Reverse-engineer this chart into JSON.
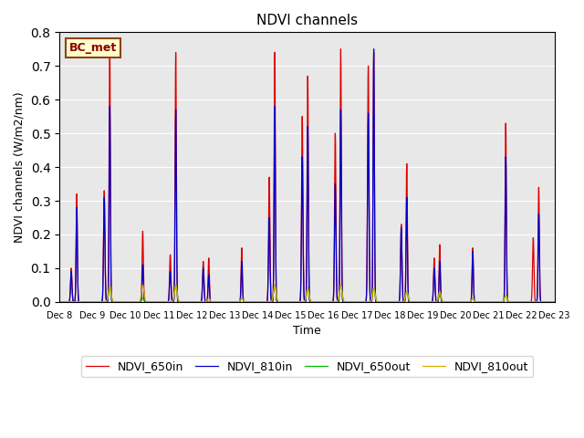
{
  "title": "NDVI channels",
  "xlabel": "Time",
  "ylabel": "NDVI channels (W/m2/nm)",
  "annotation": "BC_met",
  "ylim": [
    0.0,
    0.8
  ],
  "background_color": "#e8e8e8",
  "legend_entries": [
    "NDVI_650in",
    "NDVI_810in",
    "NDVI_650out",
    "NDVI_810out"
  ],
  "line_colors": [
    "#dd0000",
    "#0000cc",
    "#00bb00",
    "#ddaa00"
  ],
  "peaks": [
    {
      "day": 8,
      "red": 0.32,
      "blue": 0.28,
      "green": 0.0,
      "orange": 0.0,
      "pre_red": 0.1,
      "pre_blue": 0.09
    },
    {
      "day": 9,
      "red": 0.76,
      "blue": 0.58,
      "green": 0.04,
      "orange": 0.05,
      "pre_red": 0.33,
      "pre_blue": 0.31
    },
    {
      "day": 10,
      "red": 0.21,
      "blue": 0.11,
      "green": 0.01,
      "orange": 0.05,
      "pre_red": 0.0,
      "pre_blue": 0.0
    },
    {
      "day": 11,
      "red": 0.74,
      "blue": 0.57,
      "green": 0.05,
      "orange": 0.05,
      "pre_red": 0.14,
      "pre_blue": 0.09
    },
    {
      "day": 12,
      "red": 0.13,
      "blue": 0.08,
      "green": 0.0,
      "orange": 0.01,
      "pre_red": 0.12,
      "pre_blue": 0.1
    },
    {
      "day": 13,
      "red": 0.16,
      "blue": 0.12,
      "green": 0.01,
      "orange": 0.01,
      "pre_red": 0.0,
      "pre_blue": 0.0
    },
    {
      "day": 14,
      "red": 0.74,
      "blue": 0.58,
      "green": 0.05,
      "orange": 0.05,
      "pre_red": 0.37,
      "pre_blue": 0.25
    },
    {
      "day": 15,
      "red": 0.67,
      "blue": 0.52,
      "green": 0.04,
      "orange": 0.04,
      "pre_red": 0.55,
      "pre_blue": 0.43
    },
    {
      "day": 16,
      "red": 0.75,
      "blue": 0.57,
      "green": 0.05,
      "orange": 0.05,
      "pre_red": 0.5,
      "pre_blue": 0.35
    },
    {
      "day": 17,
      "red": 0.74,
      "blue": 0.75,
      "green": 0.04,
      "orange": 0.04,
      "pre_red": 0.7,
      "pre_blue": 0.56
    },
    {
      "day": 18,
      "red": 0.41,
      "blue": 0.31,
      "green": 0.03,
      "orange": 0.03,
      "pre_red": 0.23,
      "pre_blue": 0.22
    },
    {
      "day": 19,
      "red": 0.17,
      "blue": 0.12,
      "green": 0.02,
      "orange": 0.03,
      "pre_red": 0.13,
      "pre_blue": 0.1
    },
    {
      "day": 20,
      "red": 0.16,
      "blue": 0.15,
      "green": 0.01,
      "orange": 0.01,
      "pre_red": 0.0,
      "pre_blue": 0.0
    },
    {
      "day": 21,
      "red": 0.53,
      "blue": 0.43,
      "green": 0.02,
      "orange": 0.02,
      "pre_red": 0.0,
      "pre_blue": 0.0
    },
    {
      "day": 22,
      "red": 0.34,
      "blue": 0.26,
      "green": 0.0,
      "orange": 0.0,
      "pre_red": 0.19,
      "pre_blue": 0.0
    }
  ],
  "xtick_labels": [
    "Dec 8",
    "Dec 9",
    "Dec 10",
    "Dec 11",
    "Dec 12",
    "Dec 13",
    "Dec 14",
    "Dec 15",
    "Dec 16",
    "Dec 17",
    "Dec 18",
    "Dec 19",
    "Dec 20",
    "Dec 21",
    "Dec 22",
    "Dec 23"
  ],
  "n_days": 15
}
